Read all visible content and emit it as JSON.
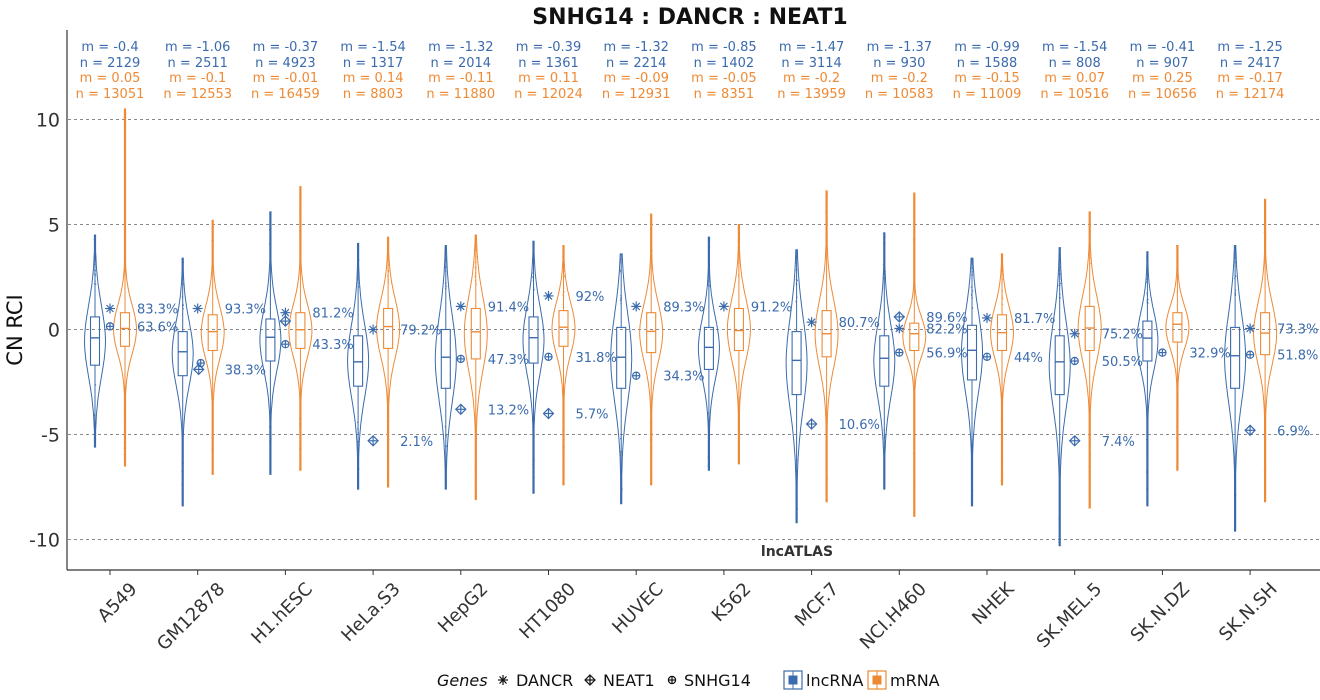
{
  "chart_data": {
    "type": "violin",
    "title": "SNHG14 : DANCR : NEAT1",
    "ylabel": "CN RCI",
    "xlabel": "",
    "ylim": [
      -11.0,
      14.0
    ],
    "yticks": [
      10,
      5,
      0,
      -5,
      -10
    ],
    "grid": "horizontal dashed",
    "source_label": "lncATLAS",
    "colors": {
      "lncRNA": "#3B6BAD",
      "mRNA": "#EE8A35"
    },
    "legend": {
      "position": "bottom",
      "genes_title": "Genes",
      "genes": [
        {
          "name": "DANCR",
          "symbol": "asterisk-icon"
        },
        {
          "name": "NEAT1",
          "symbol": "diamond-plus-icon"
        },
        {
          "name": "SNHG14",
          "symbol": "circle-plus-icon"
        }
      ],
      "types": [
        "lncRNA",
        "mRNA"
      ]
    },
    "cells": [
      {
        "name": "A549",
        "lnc_m": "m = -0.4",
        "lnc_n": "n = 2129",
        "mrna_m": "m = 0.05",
        "mrna_n": "n = 13051",
        "lnc": {
          "min": -5.6,
          "q1": -1.7,
          "median": -0.4,
          "q3": 0.6,
          "max": 4.5
        },
        "mrna": {
          "min": -6.5,
          "q1": -0.8,
          "median": 0.05,
          "q3": 0.8,
          "max": 10.5
        },
        "genes": [
          {
            "gene": "DANCR",
            "value": 1.0,
            "pct": "83.3%"
          },
          {
            "gene": "SNHG14",
            "value": 0.15,
            "pct": "63.6%"
          }
        ]
      },
      {
        "name": "GM12878",
        "lnc_m": "m = -1.06",
        "lnc_n": "n = 2511",
        "mrna_m": "m = -0.1",
        "mrna_n": "n = 12553",
        "lnc": {
          "min": -8.4,
          "q1": -2.2,
          "median": -1.06,
          "q3": -0.1,
          "max": 3.4
        },
        "mrna": {
          "min": -6.9,
          "q1": -1.0,
          "median": -0.1,
          "q3": 0.7,
          "max": 5.2
        },
        "genes": [
          {
            "gene": "DANCR",
            "value": 1.0,
            "pct": "93.3%"
          },
          {
            "gene": "NEAT1",
            "value": -1.9,
            "pct": "38.3%"
          },
          {
            "gene": "SNHG14",
            "value": -1.6,
            "pct": ""
          }
        ]
      },
      {
        "name": "H1.hESC",
        "lnc_m": "m = -0.37",
        "lnc_n": "n = 4923",
        "mrna_m": "m = -0.01",
        "mrna_n": "n = 16459",
        "lnc": {
          "min": -6.9,
          "q1": -1.5,
          "median": -0.37,
          "q3": 0.5,
          "max": 5.6
        },
        "mrna": {
          "min": -6.7,
          "q1": -0.9,
          "median": -0.01,
          "q3": 0.8,
          "max": 6.8
        },
        "genes": [
          {
            "gene": "DANCR",
            "value": 0.8,
            "pct": "81.2%"
          },
          {
            "gene": "NEAT1",
            "value": 0.4,
            "pct": ""
          },
          {
            "gene": "SNHG14",
            "value": -0.7,
            "pct": "43.3%"
          }
        ]
      },
      {
        "name": "HeLa.S3",
        "lnc_m": "m = -1.54",
        "lnc_n": "n = 1317",
        "mrna_m": "m = 0.14",
        "mrna_n": "n = 8803",
        "lnc": {
          "min": -7.6,
          "q1": -2.7,
          "median": -1.54,
          "q3": -0.3,
          "max": 4.1
        },
        "mrna": {
          "min": -7.5,
          "q1": -0.9,
          "median": 0.14,
          "q3": 1.0,
          "max": 4.4
        },
        "genes": [
          {
            "gene": "DANCR",
            "value": 0.0,
            "pct": "79.2%"
          },
          {
            "gene": "NEAT1",
            "value": -5.3,
            "pct": "2.1%"
          }
        ]
      },
      {
        "name": "HepG2",
        "lnc_m": "m = -1.32",
        "lnc_n": "n = 2014",
        "mrna_m": "m = -0.11",
        "mrna_n": "n = 11880",
        "lnc": {
          "min": -7.6,
          "q1": -2.8,
          "median": -1.32,
          "q3": 0.0,
          "max": 4.0
        },
        "mrna": {
          "min": -8.1,
          "q1": -1.4,
          "median": -0.11,
          "q3": 1.0,
          "max": 4.5
        },
        "genes": [
          {
            "gene": "DANCR",
            "value": 1.1,
            "pct": "91.4%"
          },
          {
            "gene": "SNHG14",
            "value": -1.4,
            "pct": "47.3%"
          },
          {
            "gene": "NEAT1",
            "value": -3.8,
            "pct": "13.2%"
          }
        ]
      },
      {
        "name": "HT1080",
        "lnc_m": "m = -0.39",
        "lnc_n": "n = 1361",
        "mrna_m": "m = 0.11",
        "mrna_n": "n = 12024",
        "lnc": {
          "min": -7.8,
          "q1": -1.6,
          "median": -0.39,
          "q3": 0.6,
          "max": 4.2
        },
        "mrna": {
          "min": -7.4,
          "q1": -0.8,
          "median": 0.11,
          "q3": 0.9,
          "max": 4.0
        },
        "genes": [
          {
            "gene": "DANCR",
            "value": 1.6,
            "pct": "92%"
          },
          {
            "gene": "SNHG14",
            "value": -1.3,
            "pct": "31.8%"
          },
          {
            "gene": "NEAT1",
            "value": -4.0,
            "pct": "5.7%"
          }
        ]
      },
      {
        "name": "HUVEC",
        "lnc_m": "m = -1.32",
        "lnc_n": "n = 2214",
        "mrna_m": "m = -0.09",
        "mrna_n": "n = 12931",
        "lnc": {
          "min": -8.3,
          "q1": -2.8,
          "median": -1.32,
          "q3": 0.1,
          "max": 3.6
        },
        "mrna": {
          "min": -7.4,
          "q1": -1.1,
          "median": -0.09,
          "q3": 0.8,
          "max": 5.5
        },
        "genes": [
          {
            "gene": "DANCR",
            "value": 1.1,
            "pct": "89.3%"
          },
          {
            "gene": "SNHG14",
            "value": -2.2,
            "pct": "34.3%"
          }
        ]
      },
      {
        "name": "K562",
        "lnc_m": "m = -0.85",
        "lnc_n": "n = 1402",
        "mrna_m": "m = -0.05",
        "mrna_n": "n = 8351",
        "lnc": {
          "min": -6.7,
          "q1": -1.9,
          "median": -0.85,
          "q3": 0.1,
          "max": 4.4
        },
        "mrna": {
          "min": -6.4,
          "q1": -1.0,
          "median": -0.05,
          "q3": 1.0,
          "max": 5.0
        },
        "genes": [
          {
            "gene": "DANCR",
            "value": 1.1,
            "pct": "91.2%"
          }
        ]
      },
      {
        "name": "MCF.7",
        "lnc_m": "m = -1.47",
        "lnc_n": "n = 3114",
        "mrna_m": "m = -0.2",
        "mrna_n": "n = 13959",
        "lnc": {
          "min": -9.2,
          "q1": -3.1,
          "median": -1.47,
          "q3": -0.1,
          "max": 3.8
        },
        "mrna": {
          "min": -8.2,
          "q1": -1.3,
          "median": -0.2,
          "q3": 0.9,
          "max": 6.6
        },
        "genes": [
          {
            "gene": "DANCR",
            "value": 0.35,
            "pct": "80.7%"
          },
          {
            "gene": "NEAT1",
            "value": -4.5,
            "pct": "10.6%"
          }
        ]
      },
      {
        "name": "NCI.H460",
        "lnc_m": "m = -1.37",
        "lnc_n": "n = 930",
        "mrna_m": "m = -0.2",
        "mrna_n": "n = 10583",
        "lnc": {
          "min": -7.6,
          "q1": -2.7,
          "median": -1.37,
          "q3": -0.3,
          "max": 4.6
        },
        "mrna": {
          "min": -8.9,
          "q1": -1.0,
          "median": -0.2,
          "q3": 0.3,
          "max": 6.5
        },
        "genes": [
          {
            "gene": "NEAT1",
            "value": 0.6,
            "pct": "89.6%"
          },
          {
            "gene": "DANCR",
            "value": 0.05,
            "pct": "82.2%"
          },
          {
            "gene": "SNHG14",
            "value": -1.1,
            "pct": "56.9%"
          }
        ]
      },
      {
        "name": "NHEK",
        "lnc_m": "m = -0.99",
        "lnc_n": "n = 1588",
        "mrna_m": "m = -0.15",
        "mrna_n": "n = 11009",
        "lnc": {
          "min": -8.4,
          "q1": -2.4,
          "median": -0.99,
          "q3": 0.2,
          "max": 3.4
        },
        "mrna": {
          "min": -7.4,
          "q1": -1.0,
          "median": -0.15,
          "q3": 0.7,
          "max": 3.6
        },
        "genes": [
          {
            "gene": "DANCR",
            "value": 0.55,
            "pct": "81.7%"
          },
          {
            "gene": "SNHG14",
            "value": -1.3,
            "pct": "44%"
          }
        ]
      },
      {
        "name": "SK.MEL.5",
        "lnc_m": "m = -1.54",
        "lnc_n": "n = 808",
        "mrna_m": "m = 0.07",
        "mrna_n": "n = 10516",
        "lnc": {
          "min": -10.3,
          "q1": -3.1,
          "median": -1.54,
          "q3": -0.3,
          "max": 3.9
        },
        "mrna": {
          "min": -8.5,
          "q1": -1.0,
          "median": 0.07,
          "q3": 1.1,
          "max": 5.6
        },
        "genes": [
          {
            "gene": "DANCR",
            "value": -0.2,
            "pct": "75.2%"
          },
          {
            "gene": "SNHG14",
            "value": -1.5,
            "pct": "50.5%"
          },
          {
            "gene": "NEAT1",
            "value": -5.3,
            "pct": "7.4%"
          }
        ]
      },
      {
        "name": "SK.N.DZ",
        "lnc_m": "m = -0.41",
        "lnc_n": "n = 907",
        "mrna_m": "m = 0.25",
        "mrna_n": "n = 10656",
        "lnc": {
          "min": -8.4,
          "q1": -1.5,
          "median": -0.41,
          "q3": 0.4,
          "max": 3.7
        },
        "mrna": {
          "min": -6.7,
          "q1": -0.6,
          "median": 0.25,
          "q3": 0.8,
          "max": 4.0
        },
        "genes": [
          {
            "gene": "SNHG14",
            "value": -1.1,
            "pct": "32.9%"
          }
        ]
      },
      {
        "name": "SK.N.SH",
        "lnc_m": "m = -1.25",
        "lnc_n": "n = 2417",
        "mrna_m": "m = -0.17",
        "mrna_n": "n = 12174",
        "lnc": {
          "min": -9.6,
          "q1": -2.8,
          "median": -1.25,
          "q3": 0.1,
          "max": 4.0
        },
        "mrna": {
          "min": -8.2,
          "q1": -1.2,
          "median": -0.17,
          "q3": 0.8,
          "max": 6.2
        },
        "genes": [
          {
            "gene": "DANCR",
            "value": 0.05,
            "pct": "73.3%"
          },
          {
            "gene": "SNHG14",
            "value": -1.2,
            "pct": "51.8%"
          },
          {
            "gene": "NEAT1",
            "value": -4.8,
            "pct": "6.9%"
          }
        ]
      }
    ]
  }
}
